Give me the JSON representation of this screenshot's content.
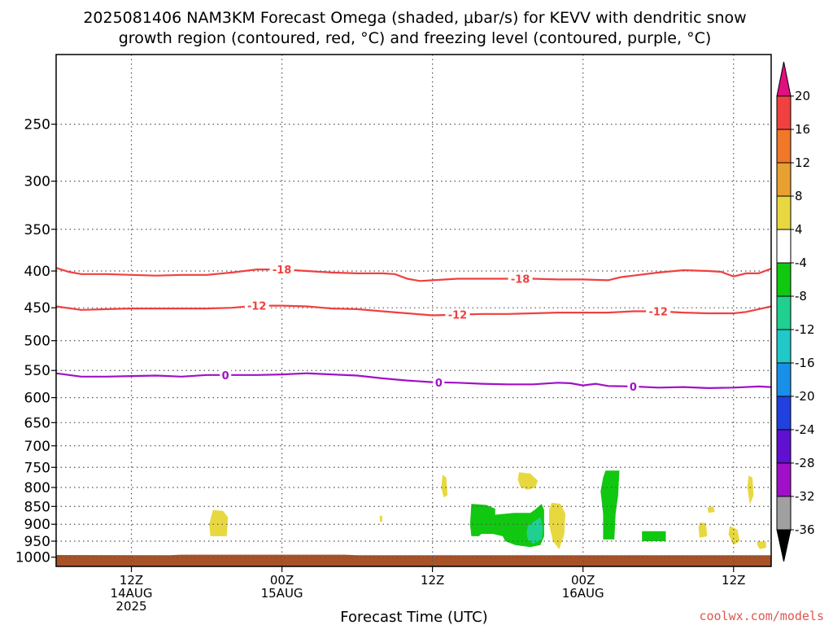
{
  "title_line1": "2025081406 NAM3KM Forecast Omega (shaded, μbar/s) for KEVV with dendritic snow",
  "title_line2": "growth region (contoured, red, °C) and freezing level (contoured, purple, °C)",
  "credit": "coolwx.com/models",
  "chart_data": {
    "type": "contour",
    "xlabel": "Forecast Time (UTC)",
    "ylabel": "",
    "x_range_hours": [
      0,
      57
    ],
    "y_scale": "log",
    "y_range_hpa": [
      200,
      1030
    ],
    "grid": true,
    "y_ticks": [
      250,
      300,
      350,
      400,
      450,
      500,
      550,
      600,
      650,
      700,
      750,
      800,
      850,
      900,
      950,
      1000
    ],
    "x_ticks": [
      {
        "hour": 6,
        "line1": "12Z",
        "line2": "14AUG",
        "line3": "2025"
      },
      {
        "hour": 18,
        "line1": "00Z",
        "line2": "15AUG",
        "line3": ""
      },
      {
        "hour": 30,
        "line1": "12Z",
        "line2": "",
        "line3": ""
      },
      {
        "hour": 42,
        "line1": "00Z",
        "line2": "16AUG",
        "line3": ""
      },
      {
        "hour": 54,
        "line1": "12Z",
        "line2": "",
        "line3": ""
      }
    ],
    "colorbar": {
      "labels": [
        "20",
        "16",
        "12",
        "8",
        "4",
        "-4",
        "-8",
        "-12",
        "-16",
        "-20",
        "-24",
        "-28",
        "-32",
        "-36"
      ],
      "bins": [
        {
          "from": 16,
          "to": 20,
          "color": "#f04040"
        },
        {
          "from": 12,
          "to": 16,
          "color": "#f07828"
        },
        {
          "from": 8,
          "to": 12,
          "color": "#e8a030"
        },
        {
          "from": 4,
          "to": 8,
          "color": "#e8d840"
        },
        {
          "from": -4,
          "to": 4,
          "color": "#ffffff"
        },
        {
          "from": -8,
          "to": -4,
          "color": "#10c810"
        },
        {
          "from": -12,
          "to": -8,
          "color": "#20d090"
        },
        {
          "from": -16,
          "to": -12,
          "color": "#20c8c8"
        },
        {
          "from": -20,
          "to": -16,
          "color": "#1890e8"
        },
        {
          "from": -24,
          "to": -20,
          "color": "#2040e0"
        },
        {
          "from": -28,
          "to": -24,
          "color": "#6010d0"
        },
        {
          "from": -32,
          "to": -28,
          "color": "#a010c8"
        },
        {
          "from": -36,
          "to": -32,
          "color": "#a0a0a0"
        }
      ],
      "top_arrow_color": "#e01080",
      "bottom_arrow_color": "#000000"
    },
    "contours": [
      {
        "value": -18,
        "label": "-18",
        "color": "#f04040",
        "label_hours": [
          18,
          37
        ],
        "points": [
          [
            0,
            396
          ],
          [
            1,
            401
          ],
          [
            2,
            404
          ],
          [
            4,
            404
          ],
          [
            6,
            405
          ],
          [
            8,
            406
          ],
          [
            10,
            405
          ],
          [
            12,
            405
          ],
          [
            14,
            402
          ],
          [
            16,
            398
          ],
          [
            18,
            398
          ],
          [
            20,
            400
          ],
          [
            22,
            402
          ],
          [
            24,
            403
          ],
          [
            26,
            403
          ],
          [
            27,
            404
          ],
          [
            28,
            410
          ],
          [
            29,
            413
          ],
          [
            30,
            412
          ],
          [
            32,
            410
          ],
          [
            34,
            410
          ],
          [
            36,
            410
          ],
          [
            38,
            410
          ],
          [
            40,
            411
          ],
          [
            42,
            411
          ],
          [
            44,
            412
          ],
          [
            45,
            408
          ],
          [
            46,
            406
          ],
          [
            48,
            402
          ],
          [
            50,
            399
          ],
          [
            52,
            400
          ],
          [
            53,
            401
          ],
          [
            54,
            407
          ],
          [
            55,
            403
          ],
          [
            56,
            403
          ],
          [
            57,
            397
          ]
        ]
      },
      {
        "value": -12,
        "label": "-12",
        "color": "#f04040",
        "label_hours": [
          16,
          32,
          48
        ],
        "points": [
          [
            0,
            448
          ],
          [
            2,
            453
          ],
          [
            4,
            452
          ],
          [
            6,
            451
          ],
          [
            8,
            451
          ],
          [
            10,
            451
          ],
          [
            12,
            451
          ],
          [
            14,
            450
          ],
          [
            16,
            447
          ],
          [
            18,
            447
          ],
          [
            20,
            448
          ],
          [
            22,
            451
          ],
          [
            24,
            452
          ],
          [
            26,
            455
          ],
          [
            28,
            458
          ],
          [
            30,
            461
          ],
          [
            32,
            460
          ],
          [
            34,
            459
          ],
          [
            36,
            459
          ],
          [
            38,
            458
          ],
          [
            40,
            457
          ],
          [
            42,
            457
          ],
          [
            44,
            457
          ],
          [
            46,
            455
          ],
          [
            48,
            455
          ],
          [
            50,
            457
          ],
          [
            52,
            458
          ],
          [
            54,
            458
          ],
          [
            55,
            456
          ],
          [
            56,
            452
          ],
          [
            57,
            448
          ]
        ]
      },
      {
        "value": 0,
        "label": "0",
        "color": "#a010c8",
        "label_hours": [
          13.5,
          30.5,
          46
        ],
        "points": [
          [
            0,
            555
          ],
          [
            2,
            561
          ],
          [
            4,
            561
          ],
          [
            6,
            560
          ],
          [
            8,
            559
          ],
          [
            10,
            561
          ],
          [
            12,
            558
          ],
          [
            14,
            558
          ],
          [
            16,
            558
          ],
          [
            18,
            557
          ],
          [
            20,
            555
          ],
          [
            22,
            557
          ],
          [
            24,
            559
          ],
          [
            26,
            564
          ],
          [
            28,
            568
          ],
          [
            30,
            571
          ],
          [
            32,
            572
          ],
          [
            34,
            574
          ],
          [
            36,
            575
          ],
          [
            38,
            575
          ],
          [
            40,
            572
          ],
          [
            41,
            573
          ],
          [
            42,
            577
          ],
          [
            43,
            574
          ],
          [
            44,
            578
          ],
          [
            46,
            579
          ],
          [
            48,
            581
          ],
          [
            50,
            580
          ],
          [
            52,
            582
          ],
          [
            54,
            581
          ],
          [
            56,
            579
          ],
          [
            57,
            580
          ]
        ]
      }
    ],
    "regions": [
      {
        "bin": "4 to 8",
        "color": "#e8d840",
        "points": [
          [
            12.5,
            860
          ],
          [
            13.3,
            862
          ],
          [
            13.7,
            880
          ],
          [
            13.6,
            935
          ],
          [
            12.3,
            935
          ],
          [
            12.2,
            900
          ]
        ]
      },
      {
        "bin": "4 to 8",
        "color": "#e8d840",
        "points": [
          [
            25.8,
            875
          ],
          [
            26.0,
            877
          ],
          [
            26.0,
            893
          ],
          [
            25.8,
            892
          ]
        ]
      },
      {
        "bin": "4 to 8",
        "color": "#e8d840",
        "points": [
          [
            30.8,
            768
          ],
          [
            31.1,
            775
          ],
          [
            31.2,
            820
          ],
          [
            30.9,
            826
          ],
          [
            30.7,
            800
          ]
        ]
      },
      {
        "bin": "4 to 8",
        "color": "#e8d840",
        "points": [
          [
            36.9,
            762
          ],
          [
            37.8,
            765
          ],
          [
            38.4,
            783
          ],
          [
            38.2,
            800
          ],
          [
            37.6,
            806
          ],
          [
            37.0,
            798
          ],
          [
            36.8,
            780
          ]
        ]
      },
      {
        "bin": "4 to 8",
        "color": "#e8d840",
        "points": [
          [
            39.5,
            840
          ],
          [
            40.2,
            843
          ],
          [
            40.6,
            870
          ],
          [
            40.5,
            930
          ],
          [
            40.1,
            975
          ],
          [
            39.6,
            950
          ],
          [
            39.3,
            900
          ],
          [
            39.3,
            860
          ]
        ]
      },
      {
        "bin": "4 to 8",
        "color": "#e8d840",
        "points": [
          [
            51.3,
            895
          ],
          [
            51.8,
            897
          ],
          [
            51.9,
            935
          ],
          [
            51.3,
            940
          ],
          [
            51.2,
            910
          ]
        ]
      },
      {
        "bin": "4 to 8",
        "color": "#e8d840",
        "points": [
          [
            51.9,
            853
          ],
          [
            52.4,
            850
          ],
          [
            52.5,
            865
          ],
          [
            52.0,
            868
          ]
        ]
      },
      {
        "bin": "4 to 8",
        "color": "#e8d840",
        "points": [
          [
            53.7,
            905
          ],
          [
            54.3,
            915
          ],
          [
            54.5,
            950
          ],
          [
            54.0,
            962
          ],
          [
            53.6,
            930
          ]
        ]
      },
      {
        "bin": "4 to 8",
        "color": "#e8d840",
        "points": [
          [
            55.2,
            770
          ],
          [
            55.5,
            775
          ],
          [
            55.6,
            820
          ],
          [
            55.3,
            845
          ],
          [
            55.1,
            800
          ]
        ]
      },
      {
        "bin": "4 to 8",
        "color": "#e8d840",
        "points": [
          [
            55.9,
            950
          ],
          [
            56.6,
            952
          ],
          [
            56.6,
            970
          ],
          [
            56.1,
            975
          ],
          [
            55.9,
            962
          ]
        ]
      },
      {
        "bin": "-8 to -4",
        "color": "#10c810",
        "points": [
          [
            33.1,
            843
          ],
          [
            34.3,
            846
          ],
          [
            35.0,
            856
          ],
          [
            35.0,
            873
          ],
          [
            36.5,
            868
          ],
          [
            37.8,
            868
          ],
          [
            38.2,
            858
          ],
          [
            38.7,
            843
          ],
          [
            38.9,
            860
          ],
          [
            38.9,
            935
          ],
          [
            38.6,
            962
          ],
          [
            37.8,
            968
          ],
          [
            36.6,
            962
          ],
          [
            35.8,
            950
          ],
          [
            35.6,
            935
          ],
          [
            34.8,
            928
          ],
          [
            33.9,
            928
          ],
          [
            33.7,
            935
          ],
          [
            33.1,
            935
          ],
          [
            33.0,
            900
          ]
        ]
      },
      {
        "bin": "-12 to -8",
        "color": "#20d090",
        "points": [
          [
            37.6,
            905
          ],
          [
            38.6,
            880
          ],
          [
            38.8,
            910
          ],
          [
            38.7,
            945
          ],
          [
            38.0,
            958
          ],
          [
            37.6,
            945
          ],
          [
            37.5,
            925
          ]
        ]
      },
      {
        "bin": "-8 to -4",
        "color": "#10c810",
        "points": [
          [
            43.8,
            758
          ],
          [
            44.9,
            758
          ],
          [
            44.8,
            820
          ],
          [
            44.6,
            870
          ],
          [
            44.5,
            945
          ],
          [
            43.6,
            945
          ],
          [
            43.6,
            870
          ],
          [
            43.4,
            810
          ],
          [
            43.6,
            775
          ]
        ]
      },
      {
        "bin": "-8 to -4",
        "color": "#10c810",
        "points": [
          [
            46.7,
            920
          ],
          [
            48.6,
            920
          ],
          [
            48.6,
            950
          ],
          [
            46.7,
            950
          ]
        ]
      },
      {
        "bin": "-8 to -4",
        "color": "#10c810",
        "points": [
          [
            48.0,
            922
          ],
          [
            48.6,
            922
          ],
          [
            48.6,
            945
          ],
          [
            48.0,
            945
          ]
        ]
      }
    ],
    "ground": {
      "color": "#a85228",
      "top_hpa": 993,
      "points": [
        [
          0,
          993
        ],
        [
          9,
          994
        ],
        [
          10,
          992
        ],
        [
          23,
          992
        ],
        [
          24,
          994
        ],
        [
          57,
          994
        ]
      ]
    }
  }
}
